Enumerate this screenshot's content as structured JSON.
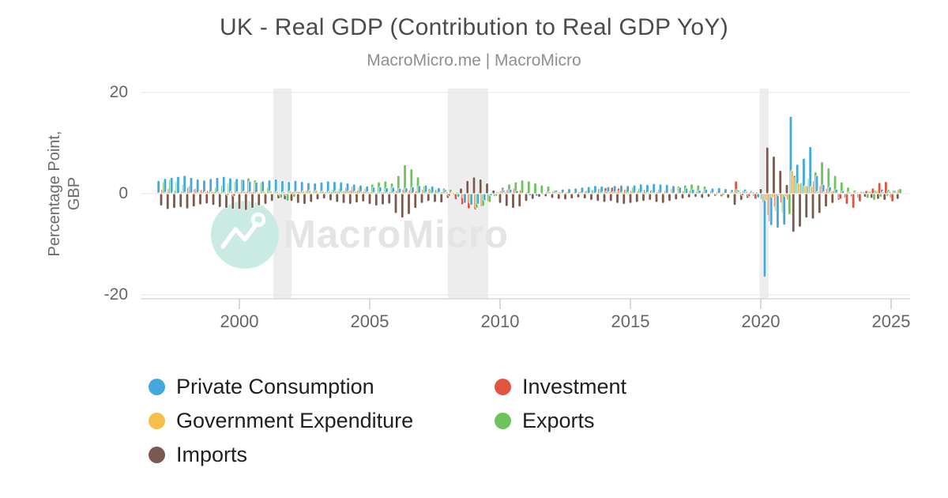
{
  "header": {
    "title": "UK - Real GDP (Contribution to Real GDP YoY)",
    "subtitle": "MacroMicro.me | MacroMicro"
  },
  "watermark": {
    "brand": "MacroMicro",
    "logo": "macromicro-mountain-logo",
    "circle_color": "#c9ebe4",
    "text_color": "#e4e4e4"
  },
  "axis": {
    "ylabel_line1": "Percentage Point,",
    "ylabel_line2": "GBP"
  },
  "chart_data": {
    "type": "bar",
    "title": "UK - Real GDP (Contribution to Real GDP YoY)",
    "subtitle": "MacroMicro.me | MacroMicro",
    "ylabel": "Percentage Point, GBP",
    "xlabel": "",
    "ylim": [
      -20,
      20
    ],
    "yticks": [
      20,
      0,
      -20
    ],
    "xticks": [
      2000,
      2005,
      2010,
      2015,
      2020,
      2025
    ],
    "x_start": 1997.0,
    "x_step": 0.25,
    "x_end": 2025.25,
    "grid": true,
    "legend_position": "bottom",
    "band_color": "#ededed",
    "recession_bands": [
      [
        2001.3,
        2002.0
      ],
      [
        2008.0,
        2009.55
      ],
      [
        2019.95,
        2020.3
      ]
    ],
    "series": [
      {
        "name": "Private Consumption",
        "color": "#41a9dc",
        "values": [
          2.6,
          3.0,
          3.2,
          3.4,
          3.6,
          3.2,
          2.9,
          2.7,
          3.0,
          3.2,
          3.4,
          3.1,
          3.0,
          2.8,
          2.5,
          2.3,
          2.5,
          2.7,
          2.9,
          2.6,
          2.4,
          2.6,
          2.4,
          2.2,
          2.1,
          2.3,
          2.5,
          2.4,
          2.3,
          2.1,
          1.9,
          1.7,
          1.5,
          1.3,
          1.4,
          1.2,
          1.3,
          1.1,
          1.2,
          1.4,
          1.6,
          1.7,
          1.5,
          1.2,
          0.8,
          0.3,
          -0.7,
          -1.9,
          -2.3,
          -2.1,
          -1.4,
          -0.4,
          0.4,
          0.7,
          0.9,
          0.6,
          0.1,
          -0.4,
          -0.5,
          -0.2,
          0.4,
          0.7,
          0.9,
          1.0,
          1.1,
          1.3,
          1.4,
          1.6,
          1.5,
          1.4,
          1.6,
          1.7,
          1.6,
          1.7,
          1.9,
          1.8,
          2.0,
          1.9,
          1.8,
          1.6,
          1.3,
          1.1,
          0.9,
          0.7,
          0.9,
          1.1,
          1.2,
          1.0,
          0.8,
          0.7,
          0.9,
          0.6,
          -0.8,
          -16.5,
          -6.3,
          -6.8,
          -6.2,
          15.3,
          5.8,
          7.0,
          9.3,
          3.6,
          1.8,
          1.4,
          0.9,
          0.6,
          0.4,
          0.3,
          0.4,
          0.5,
          0.7,
          0.9,
          0.8,
          0.6
        ]
      },
      {
        "name": "Government Expenditure",
        "color": "#f6be4a",
        "values": [
          0.2,
          0.3,
          0.2,
          0.1,
          0.3,
          0.2,
          0.3,
          0.4,
          0.5,
          0.4,
          0.3,
          0.5,
          0.4,
          0.5,
          0.4,
          0.3,
          0.5,
          0.6,
          0.5,
          0.4,
          0.6,
          0.5,
          0.6,
          0.7,
          0.7,
          0.6,
          0.5,
          0.6,
          0.5,
          0.6,
          0.5,
          0.4,
          0.4,
          0.3,
          0.4,
          0.3,
          0.3,
          0.2,
          0.3,
          0.2,
          0.2,
          0.3,
          0.2,
          0.3,
          0.4,
          0.3,
          0.4,
          0.3,
          0.5,
          0.6,
          0.5,
          0.4,
          0.3,
          0.4,
          0.2,
          0.1,
          0.0,
          0.1,
          0.0,
          0.1,
          0.2,
          0.3,
          0.2,
          0.1,
          0.1,
          0.2,
          0.1,
          0.2,
          0.3,
          0.4,
          0.4,
          0.3,
          0.3,
          0.2,
          0.3,
          0.3,
          0.2,
          0.2,
          0.1,
          0.1,
          0.1,
          0.1,
          0.0,
          0.1,
          0.1,
          0.2,
          0.1,
          0.1,
          0.3,
          0.4,
          0.5,
          0.4,
          0.2,
          -1.4,
          -0.8,
          -0.4,
          -0.6,
          4.6,
          2.1,
          1.6,
          1.5,
          0.5,
          0.4,
          0.5,
          0.2,
          0.1,
          0.2,
          0.3,
          0.4,
          0.5,
          0.6,
          0.4,
          0.5,
          0.3
        ]
      },
      {
        "name": "Imports",
        "color": "#7a5a4e",
        "values": [
          -2.4,
          -3.1,
          -2.9,
          -2.7,
          -3.0,
          -2.6,
          -2.2,
          -2.0,
          -2.3,
          -2.7,
          -2.9,
          -3.1,
          -3.1,
          -3.3,
          -2.9,
          -2.4,
          -2.1,
          -1.5,
          -1.0,
          -1.2,
          -1.5,
          -1.9,
          -2.1,
          -1.7,
          -1.2,
          -1.0,
          -1.4,
          -1.7,
          -1.9,
          -2.1,
          -1.8,
          -1.6,
          -2.1,
          -2.4,
          -2.2,
          -2.0,
          -3.9,
          -4.8,
          -4.1,
          -2.9,
          -1.9,
          -1.5,
          -1.7,
          -1.8,
          -0.9,
          -0.3,
          1.1,
          2.6,
          3.3,
          2.9,
          2.1,
          0.7,
          -1.9,
          -2.5,
          -2.9,
          -2.6,
          -1.5,
          -1.1,
          -0.7,
          -0.6,
          -0.9,
          -1.1,
          -1.2,
          -1.0,
          -0.8,
          -1.0,
          -1.3,
          -1.5,
          -1.7,
          -1.5,
          -1.9,
          -2.1,
          -1.9,
          -1.7,
          -1.5,
          -1.3,
          -1.7,
          -1.9,
          -1.5,
          -1.2,
          -1.0,
          -0.8,
          -0.7,
          -0.9,
          -0.7,
          -0.5,
          -0.6,
          -0.9,
          -2.3,
          -1.3,
          -0.9,
          -0.6,
          1.0,
          9.2,
          7.4,
          4.6,
          1.8,
          -7.6,
          -6.6,
          -4.8,
          -5.0,
          -3.9,
          -2.6,
          -1.9,
          -1.3,
          -0.9,
          -0.7,
          -0.9,
          -0.7,
          -0.9,
          -1.1,
          -1.3,
          -0.9,
          -1.1
        ]
      },
      {
        "name": "Investment",
        "color": "#e2543d",
        "values": [
          0.9,
          1.1,
          0.7,
          0.5,
          1.3,
          1.0,
          0.8,
          0.6,
          0.4,
          0.2,
          -0.3,
          -0.5,
          0.3,
          0.5,
          0.4,
          0.2,
          0.2,
          0.0,
          -0.3,
          -0.4,
          0.3,
          0.4,
          0.2,
          0.1,
          0.2,
          0.3,
          0.4,
          0.5,
          0.6,
          0.8,
          0.7,
          0.5,
          0.3,
          0.2,
          0.3,
          0.4,
          0.7,
          0.9,
          0.8,
          0.6,
          0.9,
          1.0,
          0.8,
          0.4,
          -0.5,
          -1.2,
          -2.2,
          -3.0,
          -3.2,
          -2.6,
          -1.6,
          -0.6,
          0.6,
          0.9,
          1.1,
          0.8,
          0.4,
          0.2,
          0.1,
          0.3,
          0.5,
          0.4,
          0.3,
          0.2,
          0.4,
          0.6,
          0.8,
          1.0,
          1.2,
          1.3,
          1.1,
          0.9,
          0.7,
          0.6,
          0.8,
          0.7,
          0.4,
          0.2,
          0.1,
          0.2,
          0.6,
          0.7,
          0.5,
          0.4,
          0.1,
          -0.2,
          -0.3,
          -0.1,
          2.5,
          -0.4,
          -0.6,
          -1.1,
          -1.2,
          -4.4,
          -2.7,
          -1.9,
          -1.3,
          3.6,
          2.1,
          1.6,
          2.6,
          1.6,
          1.1,
          0.6,
          -1.1,
          -2.1,
          -2.9,
          -1.6,
          0.6,
          1.1,
          2.2,
          2.4,
          -1.6,
          0.9
        ]
      },
      {
        "name": "Exports",
        "color": "#6ec35c",
        "values": [
          2.3,
          2.9,
          2.5,
          1.9,
          1.6,
          1.1,
          0.7,
          0.5,
          1.3,
          1.7,
          2.1,
          2.5,
          2.9,
          3.1,
          2.7,
          2.3,
          1.3,
          0.3,
          -0.9,
          -1.5,
          -0.7,
          0.2,
          0.7,
          0.5,
          0.3,
          0.5,
          0.9,
          1.1,
          1.3,
          1.5,
          1.3,
          1.1,
          1.9,
          2.3,
          2.5,
          2.1,
          3.6,
          5.7,
          4.9,
          3.3,
          1.6,
          0.9,
          0.7,
          1.1,
          0.9,
          0.3,
          -0.9,
          -1.9,
          -2.9,
          -2.5,
          -1.7,
          -0.5,
          1.3,
          1.9,
          2.3,
          2.7,
          2.5,
          2.1,
          1.7,
          1.5,
          0.7,
          0.3,
          0.5,
          0.3,
          0.5,
          0.7,
          0.9,
          1.1,
          0.6,
          0.4,
          0.7,
          0.9,
          1.3,
          1.1,
          0.7,
          0.5,
          0.9,
          0.7,
          1.1,
          1.5,
          1.7,
          1.9,
          1.7,
          1.5,
          0.7,
          0.5,
          0.3,
          0.4,
          0.9,
          0.7,
          0.5,
          0.3,
          -1.9,
          -5.6,
          -3.6,
          -3.9,
          -4.1,
          3.3,
          2.3,
          3.1,
          4.3,
          6.3,
          5.1,
          3.6,
          2.3,
          1.3,
          0.7,
          0.5,
          -0.9,
          -1.3,
          -0.7,
          -0.5,
          0.7,
          1.0
        ]
      }
    ]
  }
}
